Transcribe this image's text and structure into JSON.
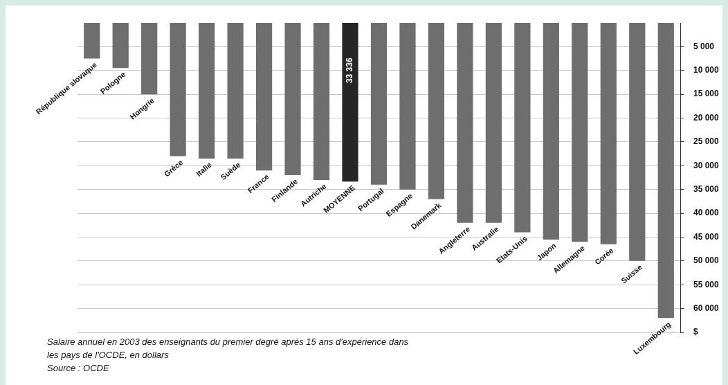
{
  "chart_data": {
    "type": "bar",
    "categories": [
      "République slovaque",
      "Pologne",
      "Hongrie",
      "Grèce",
      "Italie",
      "Suède",
      "France",
      "Finlande",
      "Autriche",
      "MOYENNE",
      "Portugal",
      "Espagne",
      "Danemark",
      "Angleterre",
      "Australie",
      "Etats-Unis",
      "Japon",
      "Allemagne",
      "Corée",
      "Suisse",
      "Luxembourg"
    ],
    "values": [
      7500,
      9500,
      15000,
      28000,
      28500,
      28500,
      31000,
      32000,
      33000,
      33336,
      34000,
      35000,
      37000,
      42000,
      42000,
      44000,
      45500,
      46000,
      46500,
      50000,
      62000
    ],
    "colors": [
      "#6e6e6e",
      "#6e6e6e",
      "#6e6e6e",
      "#6e6e6e",
      "#6e6e6e",
      "#6e6e6e",
      "#6e6e6e",
      "#6e6e6e",
      "#6e6e6e",
      "#262626",
      "#6e6e6e",
      "#6e6e6e",
      "#6e6e6e",
      "#6e6e6e",
      "#6e6e6e",
      "#6e6e6e",
      "#6e6e6e",
      "#6e6e6e",
      "#6e6e6e",
      "#6e6e6e",
      "#6e6e6e"
    ],
    "value_labels": [
      null,
      null,
      null,
      null,
      null,
      null,
      null,
      null,
      null,
      "33 336",
      null,
      null,
      null,
      null,
      null,
      null,
      null,
      null,
      null,
      null,
      null
    ],
    "ylim": [
      65000,
      0
    ],
    "yticks": [
      {
        "value": 5000,
        "label": "5 000"
      },
      {
        "value": 10000,
        "label": "10 000"
      },
      {
        "value": 15000,
        "label": "15 000"
      },
      {
        "value": 20000,
        "label": "20 000"
      },
      {
        "value": 25000,
        "label": "25 000"
      },
      {
        "value": 30000,
        "label": "30 000"
      },
      {
        "value": 35000,
        "label": "35 000"
      },
      {
        "value": 40000,
        "label": "40 000"
      },
      {
        "value": 45000,
        "label": "45 000"
      },
      {
        "value": 50000,
        "label": "50 000"
      },
      {
        "value": 55000,
        "label": "55 000"
      },
      {
        "value": 60000,
        "label": "60 000"
      },
      {
        "value": 65000,
        "label": "$"
      }
    ],
    "grid": "y",
    "annotations": [
      "Salaire annuel en 2003 des enseignants du premier degré après 15 ans d'expérience dans les pays de l'OCDE, en dollars",
      "Source : OCDE"
    ]
  }
}
